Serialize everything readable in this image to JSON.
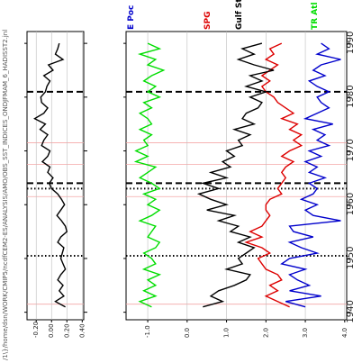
{
  "header_path": "/1\\}/home/dsn/WORK/CMIP5/ncdfCEM2-ES/ANALYSIS/AMO/OBS_SST_INDICES_ONDJFMAM_6_HADISST2.jnl",
  "chart_data": [
    {
      "type": "line",
      "title": "",
      "xlabel": "",
      "ylabel": "",
      "x_ticks": [
        1940,
        1950,
        1960,
        1970,
        1980,
        1990
      ],
      "y_tick_labels": [
        "0.40",
        "0.20",
        "0.00",
        "-0.20"
      ],
      "y_ticks": [
        0.4,
        0.2,
        0.0,
        -0.2
      ],
      "ylim": [
        -0.32,
        0.42
      ],
      "xlim": [
        1938.6,
        1992.2
      ],
      "reference_lines": [
        1941.5,
        1961.5,
        1967.5,
        1971.5
      ],
      "dotted_vlines": [
        1950.5,
        1963.0
      ],
      "dashed_vlines": [
        1964.0,
        1981.0
      ],
      "series": [
        {
          "color": "#000000",
          "x": [
            1941,
            1942,
            1943,
            1944,
            1945,
            1946,
            1947,
            1948,
            1949,
            1950,
            1951,
            1952,
            1953,
            1954,
            1955,
            1956,
            1957,
            1958,
            1959,
            1960,
            1961,
            1962,
            1963,
            1964,
            1965,
            1966,
            1967,
            1968,
            1969,
            1970,
            1971,
            1972,
            1973,
            1974,
            1975,
            1976,
            1977,
            1978,
            1979,
            1980,
            1981,
            1982,
            1983,
            1984,
            1985,
            1986,
            1987,
            1988,
            1989,
            1990
          ],
          "y": [
            0.18,
            0.05,
            0.16,
            0.1,
            0.15,
            0.08,
            0.12,
            0.18,
            0.15,
            0.12,
            0.14,
            0.16,
            0.08,
            0.12,
            0.2,
            0.18,
            0.13,
            0.07,
            0.12,
            0.17,
            0.13,
            0.08,
            0.0,
            -0.03,
            0.02,
            -0.05,
            -0.02,
            -0.12,
            -0.05,
            -0.02,
            -0.13,
            -0.1,
            -0.05,
            -0.15,
            -0.08,
            -0.22,
            -0.1,
            -0.05,
            -0.13,
            -0.14,
            -0.08,
            -0.06,
            -0.02,
            -0.1,
            0.02,
            -0.04,
            0.15,
            0.05,
            0.08,
            0.1
          ]
        }
      ]
    },
    {
      "type": "line",
      "title": "",
      "xlabel": "",
      "ylabel": "",
      "x_ticks": [
        1940,
        1950,
        1960,
        1970,
        1980,
        1990
      ],
      "y_tick_labels": [
        "4.0",
        "3.0",
        "2.0",
        "1.0",
        "0.0",
        "-1.0"
      ],
      "y_ticks": [
        4.0,
        3.0,
        2.0,
        1.0,
        0.0,
        -1.0
      ],
      "ylim": [
        -1.55,
        4.05
      ],
      "xlim": [
        1938.6,
        1992.2
      ],
      "reference_lines": [
        1941.5,
        1961.5,
        1967.5,
        1971.5
      ],
      "dotted_vlines": [
        1950.5,
        1963.0
      ],
      "dashed_vlines": [
        1964.0,
        1981.0
      ],
      "series": [
        {
          "name": "E Poc",
          "color": "#0000cc",
          "x": [
            1941,
            1942,
            1943,
            1944,
            1945,
            1946,
            1947,
            1948,
            1949,
            1950,
            1951,
            1952,
            1953,
            1954,
            1955,
            1956,
            1957,
            1958,
            1959,
            1960,
            1961,
            1962,
            1963,
            1964,
            1965,
            1966,
            1967,
            1968,
            1969,
            1970,
            1971,
            1972,
            1973,
            1974,
            1975,
            1976,
            1977,
            1978,
            1979,
            1980,
            1981,
            1982,
            1983,
            1984,
            1985,
            1986,
            1987,
            1988,
            1989,
            1990
          ],
          "y": [
            3.0,
            2.5,
            3.4,
            2.6,
            3.1,
            2.8,
            2.6,
            3.0,
            2.4,
            2.6,
            3.3,
            2.9,
            2.6,
            3.2,
            2.7,
            2.6,
            3.9,
            3.2,
            3.0,
            3.3,
            2.9,
            3.2,
            3.3,
            3.1,
            3.5,
            3.1,
            3.3,
            3.0,
            3.4,
            3.1,
            3.6,
            3.3,
            3.5,
            3.2,
            3.7,
            3.0,
            3.3,
            3.6,
            3.4,
            3.3,
            3.6,
            3.3,
            3.1,
            3.5,
            3.2,
            3.4,
            3.9,
            3.3,
            3.6,
            3.4
          ]
        },
        {
          "name": "SPG",
          "color": "#dd0000",
          "x": [
            1941,
            1942,
            1943,
            1944,
            1945,
            1946,
            1947,
            1948,
            1949,
            1950,
            1951,
            1952,
            1953,
            1954,
            1955,
            1956,
            1957,
            1958,
            1959,
            1960,
            1961,
            1962,
            1963,
            1964,
            1965,
            1966,
            1967,
            1968,
            1969,
            1970,
            1971,
            1972,
            1973,
            1974,
            1975,
            1976,
            1977,
            1978,
            1979,
            1980,
            1981,
            1982,
            1983,
            1984,
            1985,
            1986,
            1987,
            1988,
            1989,
            1990
          ],
          "y": [
            2.6,
            2.3,
            2.0,
            2.3,
            2.1,
            2.4,
            2.3,
            2.0,
            1.9,
            1.8,
            2.1,
            1.9,
            1.5,
            1.9,
            1.6,
            1.9,
            2.0,
            2.1,
            2.0,
            2.0,
            2.1,
            2.4,
            2.3,
            2.4,
            2.5,
            2.4,
            2.5,
            2.7,
            2.4,
            2.6,
            2.9,
            2.7,
            2.9,
            2.6,
            2.8,
            2.4,
            2.7,
            2.5,
            2.3,
            2.2,
            2.0,
            1.9,
            2.1,
            1.9,
            2.1,
            2.3,
            2.0,
            2.2,
            2.1,
            2.4
          ]
        },
        {
          "name": "Gulf Str",
          "color": "#000000",
          "x": [
            1941,
            1942,
            1943,
            1944,
            1945,
            1946,
            1947,
            1948,
            1949,
            1950,
            1951,
            1952,
            1953,
            1954,
            1955,
            1956,
            1957,
            1958,
            1959,
            1960,
            1961,
            1962,
            1963,
            1964,
            1965,
            1966,
            1967,
            1968,
            1969,
            1970,
            1971,
            1972,
            1973,
            1974,
            1975,
            1976,
            1977,
            1978,
            1979,
            1980,
            1981,
            1982,
            1983,
            1984,
            1985,
            1986,
            1987,
            1988,
            1989,
            1990
          ],
          "y": [
            0.4,
            0.9,
            0.6,
            0.8,
            1.2,
            1.5,
            1.6,
            1.0,
            1.4,
            1.3,
            1.5,
            1.7,
            1.3,
            1.6,
            1.1,
            1.3,
            0.8,
            1.2,
            0.5,
            1.0,
            0.6,
            0.3,
            0.8,
            0.4,
            1.0,
            0.6,
            1.1,
            0.9,
            1.2,
            1.0,
            1.4,
            1.3,
            1.6,
            1.2,
            1.7,
            1.4,
            1.5,
            1.8,
            1.9,
            1.6,
            2.0,
            1.5,
            1.9,
            1.6,
            2.2,
            1.7,
            1.3,
            1.7,
            1.4,
            1.9
          ]
        },
        {
          "name": "TR Atl",
          "color": "#00dd00",
          "x": [
            1941,
            1942,
            1943,
            1944,
            1945,
            1946,
            1947,
            1948,
            1949,
            1950,
            1951,
            1952,
            1953,
            1954,
            1955,
            1956,
            1957,
            1958,
            1959,
            1960,
            1961,
            1962,
            1963,
            1964,
            1965,
            1966,
            1967,
            1968,
            1969,
            1970,
            1971,
            1972,
            1973,
            1974,
            1975,
            1976,
            1977,
            1978,
            1979,
            1980,
            1981,
            1982,
            1983,
            1984,
            1985,
            1986,
            1987,
            1988,
            1989,
            1990
          ],
          "y": [
            -0.9,
            -1.2,
            -0.8,
            -1.1,
            -0.8,
            -1.0,
            -0.7,
            -1.1,
            -0.8,
            -0.9,
            -1.1,
            -0.8,
            -0.7,
            -1.0,
            -0.9,
            -0.8,
            -1.2,
            -0.9,
            -0.7,
            -1.0,
            -0.8,
            -1.1,
            -0.7,
            -0.9,
            -1.2,
            -1.0,
            -0.8,
            -1.3,
            -1.0,
            -1.3,
            -1.0,
            -1.1,
            -0.9,
            -1.2,
            -0.9,
            -1.0,
            -1.2,
            -0.9,
            -1.1,
            -0.7,
            -1.0,
            -0.8,
            -1.1,
            -0.9,
            -0.6,
            -1.0,
            -0.8,
            -1.2,
            -0.7,
            -1.0
          ]
        }
      ]
    }
  ]
}
